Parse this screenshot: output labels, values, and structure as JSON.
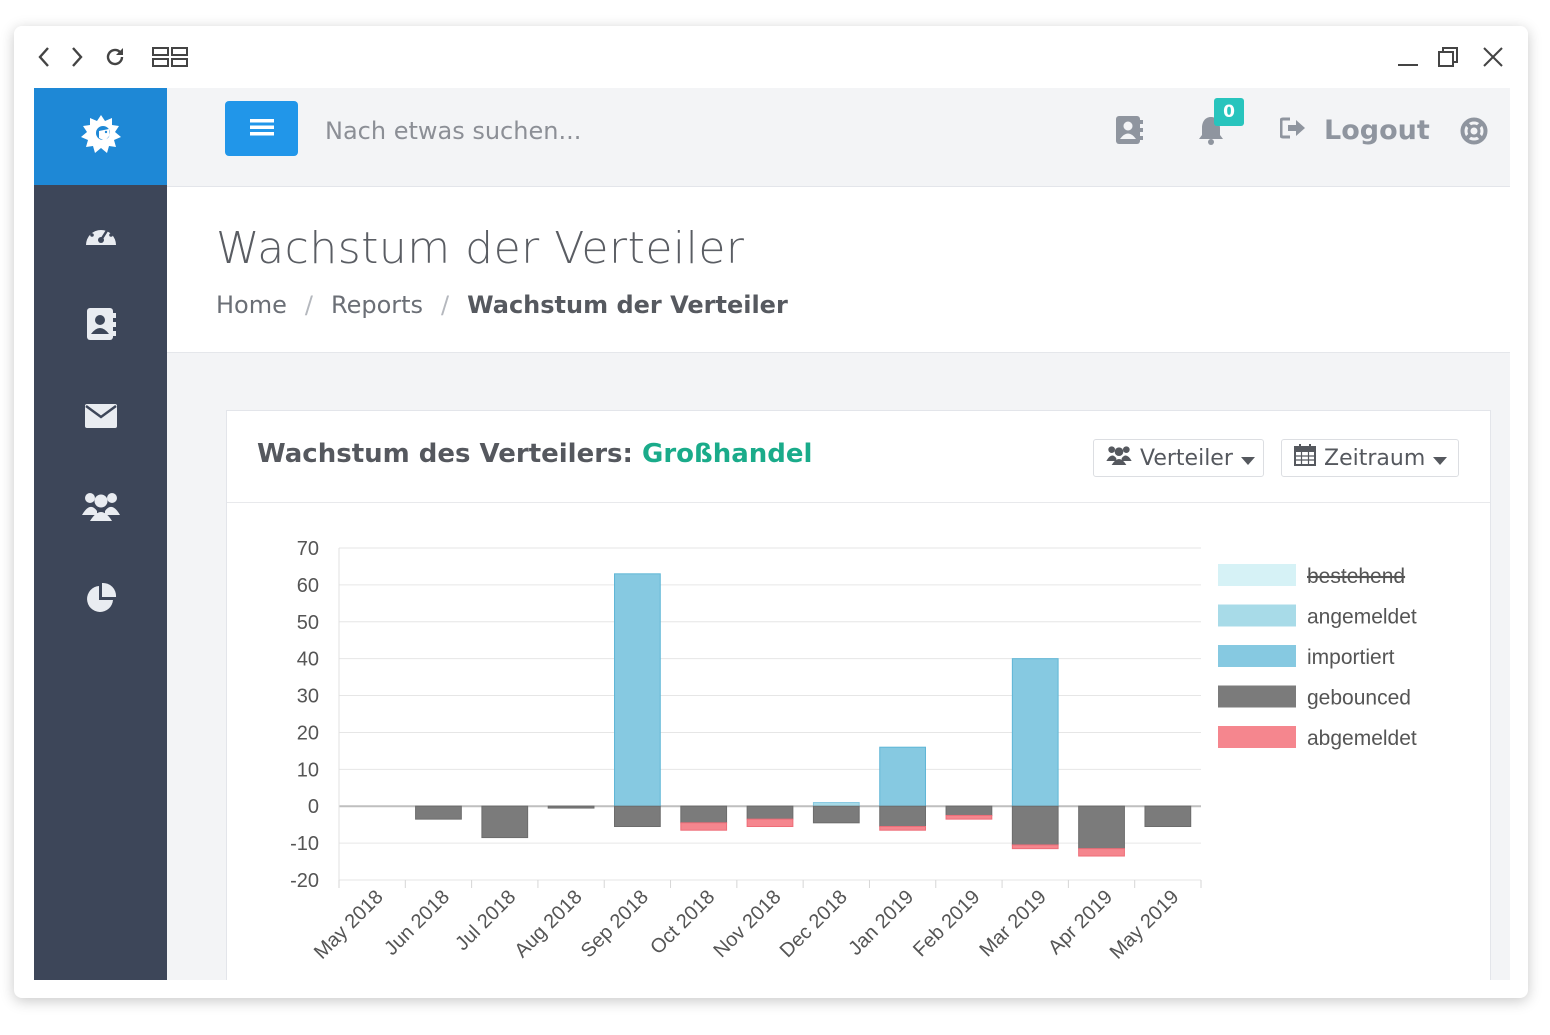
{
  "search": {
    "placeholder": "Nach etwas suchen..."
  },
  "notifications": {
    "count": "0"
  },
  "nav": {
    "logout_label": "Logout"
  },
  "page": {
    "title": "Wachstum der Verteiler",
    "breadcrumb": [
      "Home",
      "Reports",
      "Wachstum der Verteiler"
    ]
  },
  "card": {
    "title_prefix": "Wachstum des Verteilers:",
    "list_name": "Großhandel",
    "filter_list_label": "Verteiler",
    "filter_period_label": "Zeitraum"
  },
  "icons": {
    "window_back": "chevron-left-icon",
    "window_forward": "chevron-right-icon",
    "window_reload": "reload-icon",
    "window_tabs": "tab-grid-icon",
    "window_minimize": "minimize-icon",
    "window_restore": "restore-icon",
    "window_close": "close-icon",
    "logo": "lion-logo-icon",
    "sidebar": [
      "dashboard-icon",
      "contacts-icon",
      "envelope-icon",
      "users-icon",
      "pie-chart-icon"
    ],
    "menu": "hamburger-icon",
    "contacts": "address-book-icon",
    "bell": "bell-icon",
    "logout": "sign-out-icon",
    "help": "life-ring-icon"
  },
  "colors": {
    "accent": "#2196e9",
    "sidebar": "#3d4659",
    "list_name": "#1aab8a",
    "badge": "#28c4bd"
  },
  "chart_data": {
    "type": "bar",
    "stacked": true,
    "categories": [
      "May 2018",
      "Jun 2018",
      "Jul 2018",
      "Aug 2018",
      "Sep 2018",
      "Oct 2018",
      "Nov 2018",
      "Dec 2018",
      "Jan 2019",
      "Feb 2019",
      "Mar 2019",
      "Apr 2019",
      "May 2019"
    ],
    "ylim": [
      -20,
      70
    ],
    "yticks": [
      70,
      60,
      50,
      40,
      30,
      20,
      10,
      0,
      -10,
      -20
    ],
    "grid": true,
    "legend_position": "right",
    "series": [
      {
        "name": "bestehend",
        "color": "#d6f2f6",
        "hidden": true,
        "values": [
          0,
          0,
          0,
          0,
          0,
          0,
          0,
          0,
          0,
          0,
          0,
          0,
          0
        ]
      },
      {
        "name": "angemeldet",
        "color": "#a8dbe8",
        "values": [
          0,
          0,
          0,
          0,
          0,
          0,
          0,
          1,
          0,
          0,
          0,
          0,
          0
        ]
      },
      {
        "name": "importiert",
        "color": "#86c9e1",
        "values": [
          0,
          0,
          0,
          0,
          63,
          0,
          0,
          0,
          16,
          0,
          40,
          0,
          0
        ]
      },
      {
        "name": "gebounced",
        "color": "#7b7b7b",
        "values": [
          0,
          -3.5,
          -8.5,
          -0.5,
          -5.5,
          -4.5,
          -3.5,
          -4.5,
          -5.5,
          -2.5,
          -10.5,
          -11.5,
          -5.5
        ]
      },
      {
        "name": "abgemeldet",
        "color": "#f5868e",
        "values": [
          0,
          0,
          0,
          0,
          0,
          -2,
          -2,
          0,
          -1,
          -1,
          -1,
          -2,
          0
        ]
      }
    ]
  }
}
